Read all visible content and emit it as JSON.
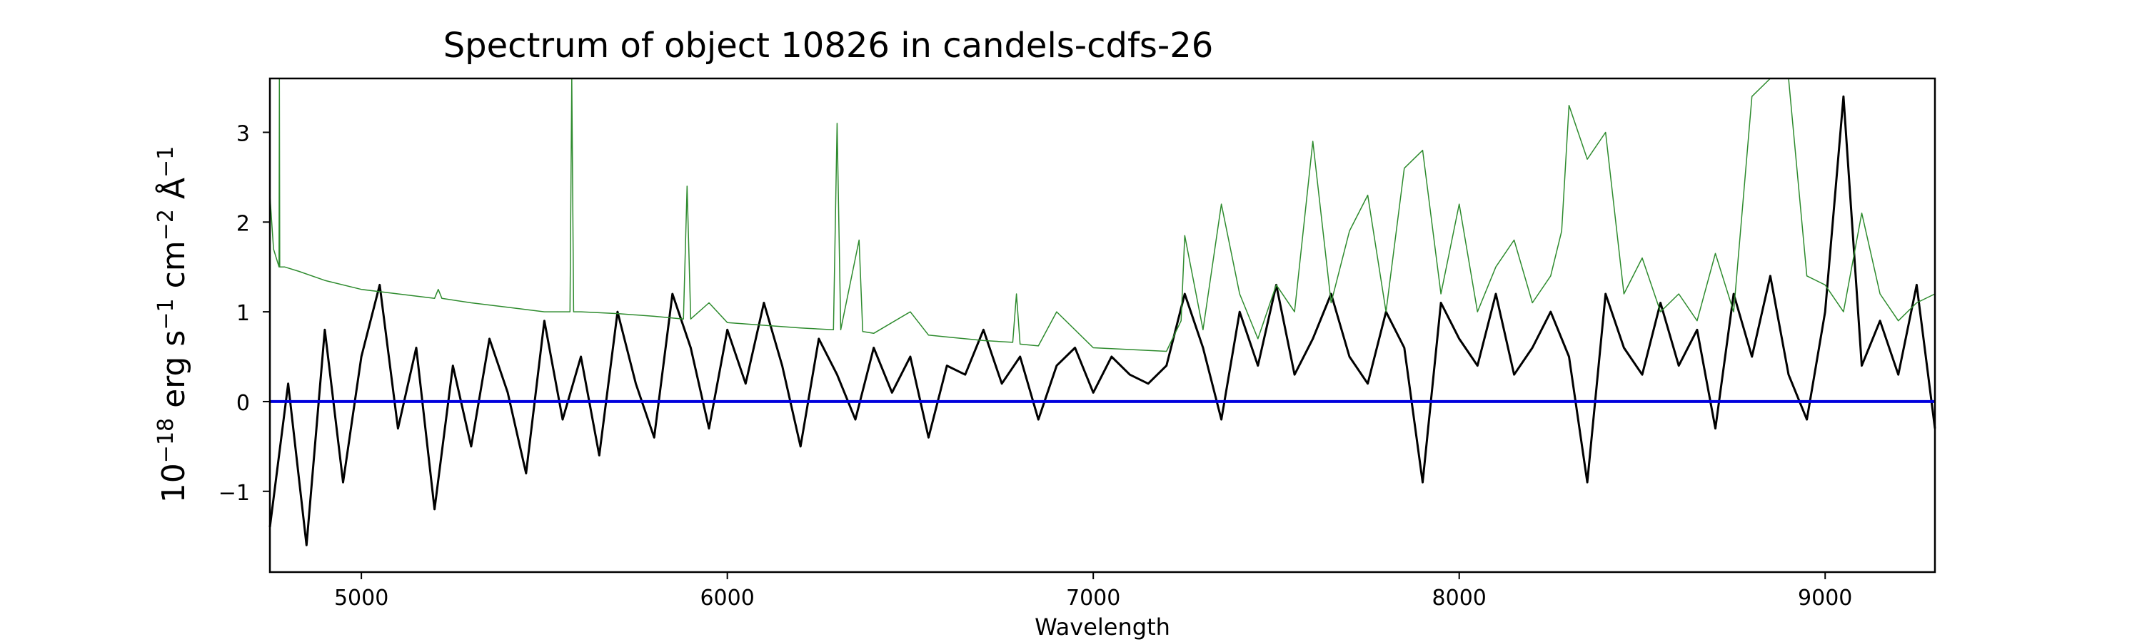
{
  "chart_data": {
    "type": "line",
    "title": "Spectrum of object 10826 in candels-cdfs-26",
    "xlabel": "Wavelength",
    "ylabel": {
      "base": "10",
      "exp1": "−18",
      "mid1": " erg s",
      "exp2": "−1",
      "mid2": " cm",
      "exp3": "−2",
      "mid3": " Å",
      "exp4": "−1"
    },
    "xlim": [
      4750,
      9300
    ],
    "ylim": [
      -1.9,
      3.6
    ],
    "xticks": [
      5000,
      6000,
      7000,
      8000,
      9000
    ],
    "yticks": [
      -1,
      0,
      1,
      2,
      3
    ],
    "xtick_labels": [
      "5000",
      "6000",
      "7000",
      "8000",
      "9000"
    ],
    "ytick_labels": [
      "−1",
      "0",
      "1",
      "2",
      "3"
    ],
    "series": [
      {
        "color": "#000000",
        "x": [
          4750,
          4800,
          4850,
          4900,
          4950,
          5000,
          5050,
          5100,
          5150,
          5200,
          5250,
          5300,
          5350,
          5400,
          5450,
          5500,
          5550,
          5600,
          5650,
          5700,
          5750,
          5800,
          5850,
          5900,
          5950,
          6000,
          6050,
          6100,
          6150,
          6200,
          6250,
          6300,
          6350,
          6400,
          6450,
          6500,
          6550,
          6600,
          6650,
          6700,
          6750,
          6800,
          6850,
          6900,
          6950,
          7000,
          7050,
          7100,
          7150,
          7200,
          7250,
          7300,
          7350,
          7400,
          7450,
          7500,
          7550,
          7600,
          7650,
          7700,
          7750,
          7800,
          7850,
          7900,
          7950,
          8000,
          8050,
          8100,
          8150,
          8200,
          8250,
          8300,
          8350,
          8400,
          8450,
          8500,
          8550,
          8600,
          8650,
          8700,
          8750,
          8800,
          8850,
          8900,
          8950,
          9000,
          9050,
          9100,
          9150,
          9200,
          9250,
          9300
        ],
        "y": [
          -1.4,
          0.2,
          -1.6,
          0.8,
          -0.9,
          0.5,
          1.3,
          -0.3,
          0.6,
          -1.2,
          0.4,
          -0.5,
          0.7,
          0.1,
          -0.8,
          0.9,
          -0.2,
          0.5,
          -0.6,
          1.0,
          0.2,
          -0.4,
          1.2,
          0.6,
          -0.3,
          0.8,
          0.2,
          1.1,
          0.4,
          -0.5,
          0.7,
          0.3,
          -0.2,
          0.6,
          0.1,
          0.5,
          -0.4,
          0.4,
          0.3,
          0.8,
          0.2,
          0.5,
          -0.2,
          0.4,
          0.6,
          0.1,
          0.5,
          0.3,
          0.2,
          0.4,
          1.2,
          0.6,
          -0.2,
          1.0,
          0.4,
          1.3,
          0.3,
          0.7,
          1.2,
          0.5,
          0.2,
          1.0,
          0.6,
          -0.9,
          1.1,
          0.7,
          0.4,
          1.2,
          0.3,
          0.6,
          1.0,
          0.5,
          -0.9,
          1.2,
          0.6,
          0.3,
          1.1,
          0.4,
          0.8,
          -0.3,
          1.2,
          0.5,
          1.4,
          0.3,
          -0.2,
          1.0,
          3.4,
          0.4,
          0.9,
          0.3,
          1.3,
          -0.3
        ]
      },
      {
        "color": "#2e8b2e",
        "x": [
          4750,
          4760,
          4775,
          4776,
          4777,
          4790,
          4830,
          4900,
          5000,
          5100,
          5200,
          5210,
          5220,
          5300,
          5400,
          5500,
          5570,
          5575,
          5580,
          5600,
          5700,
          5800,
          5880,
          5890,
          5900,
          5950,
          6000,
          6100,
          6200,
          6290,
          6300,
          6310,
          6360,
          6370,
          6400,
          6500,
          6550,
          6600,
          6700,
          6780,
          6790,
          6800,
          6850,
          6900,
          7000,
          7100,
          7200,
          7240,
          7250,
          7300,
          7350,
          7400,
          7450,
          7500,
          7550,
          7600,
          7650,
          7700,
          7750,
          7800,
          7850,
          7900,
          7950,
          8000,
          8050,
          8100,
          8150,
          8200,
          8250,
          8280,
          8300,
          8350,
          8400,
          8450,
          8500,
          8550,
          8600,
          8650,
          8700,
          8750,
          8800,
          8850,
          8900,
          8950,
          9000,
          9050,
          9100,
          9150,
          9200,
          9250,
          9300
        ],
        "y": [
          2.3,
          1.7,
          1.5,
          3.6,
          1.5,
          1.5,
          1.45,
          1.35,
          1.25,
          1.2,
          1.15,
          1.25,
          1.15,
          1.1,
          1.05,
          1.0,
          1.0,
          3.6,
          1.0,
          1.0,
          0.98,
          0.95,
          0.92,
          2.4,
          0.92,
          1.1,
          0.88,
          0.85,
          0.82,
          0.8,
          3.1,
          0.8,
          1.8,
          0.78,
          0.76,
          1.0,
          0.74,
          0.72,
          0.68,
          0.66,
          1.2,
          0.64,
          0.62,
          1.0,
          0.6,
          0.58,
          0.56,
          0.9,
          1.85,
          0.8,
          2.2,
          1.2,
          0.7,
          1.3,
          1.0,
          2.9,
          1.1,
          1.9,
          2.3,
          1.0,
          2.6,
          2.8,
          1.2,
          2.2,
          1.0,
          1.5,
          1.8,
          1.1,
          1.4,
          1.9,
          3.3,
          2.7,
          3.0,
          1.2,
          1.6,
          1.0,
          1.2,
          0.9,
          1.65,
          1.0,
          3.4,
          3.6,
          3.6,
          1.4,
          1.3,
          1.0,
          2.1,
          1.2,
          0.9,
          1.1,
          1.2
        ]
      },
      {
        "color": "#0000dd",
        "x": [
          4750,
          9300
        ],
        "y": [
          0,
          0
        ]
      }
    ]
  }
}
